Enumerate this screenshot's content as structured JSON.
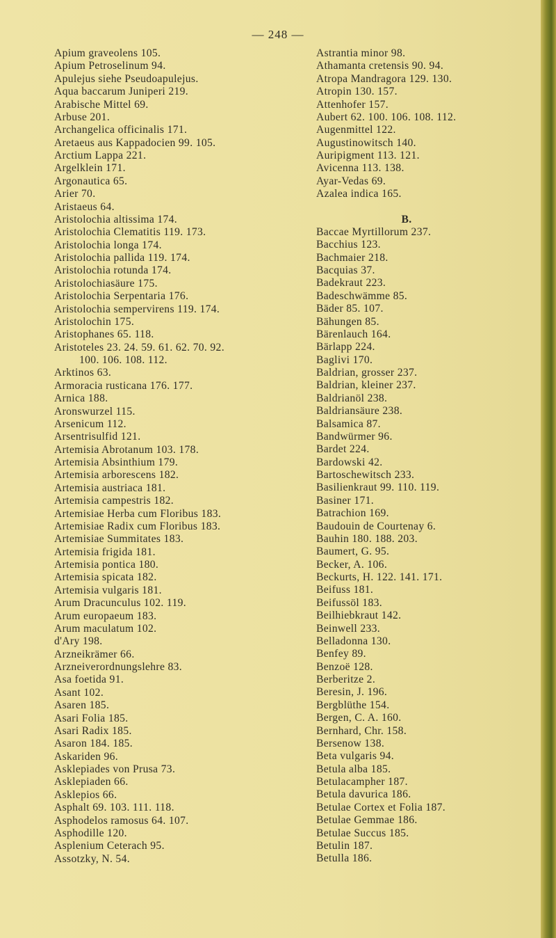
{
  "page_number": "— 248 —",
  "left_column": [
    "Apium graveolens 105.",
    "Apium Petroselinum 94.",
    "Apulejus siehe Pseudoapulejus.",
    "Aqua baccarum Juniperi 219.",
    "Arabische Mittel 69.",
    "Arbuse 201.",
    "Archangelica officinalis 171.",
    "Aretaeus aus Kappadocien 99. 105.",
    "Arctium Lappa 221.",
    "Argelklein 171.",
    "Argonautica 65.",
    "Arier 70.",
    "Aristaeus 64.",
    "Aristolochia altissima 174.",
    "Aristolochia Clematitis 119. 173.",
    "Aristolochia longa 174.",
    "Aristolochia pallida 119. 174.",
    "Aristolochia rotunda 174.",
    "Aristolochiasäure 175.",
    "Aristolochia Serpentaria 176.",
    "Aristolochia sempervirens 119. 174.",
    "Aristolochin 175.",
    "Aristophanes 65. 118.",
    "Aristoteles 23. 24. 59. 61. 62. 70. 92.",
    "100. 106. 108. 112.",
    "Arktinos 63.",
    "Armoracia rusticana 176. 177.",
    "Arnica 188.",
    "Aronswurzel 115.",
    "Arsenicum 112.",
    "Arsentrisulfid 121.",
    "Artemisia Abrotanum 103. 178.",
    "Artemisia Absinthium 179.",
    "Artemisia arborescens 182.",
    "Artemisia austriaca 181.",
    "Artemisia campestris 182.",
    "Artemisiae Herba cum Floribus 183.",
    "Artemisiae Radix cum Floribus 183.",
    "Artemisiae Summitates 183.",
    "Artemisia frigida 181.",
    "Artemisia pontica 180.",
    "Artemisia spicata 182.",
    "Artemisia vulgaris 181.",
    "Arum Dracunculus 102. 119.",
    "Arum europaeum 183.",
    "Arum maculatum 102.",
    "d'Ary 198.",
    "Arzneikrämer 66.",
    "Arzneiverordnungslehre 83.",
    "Asa foetida 91.",
    "Asant 102.",
    "Asaren 185.",
    "Asari Folia 185.",
    "Asari Radix 185.",
    "Asaron 184. 185.",
    "Askariden 96.",
    "Asklepiades von Prusa 73.",
    "Asklepiaden 66.",
    "Asklepios 66.",
    "Asphalt 69. 103. 111. 118.",
    "Asphodelos ramosus 64. 107.",
    "Asphodille 120.",
    "Asplenium Ceterach 95.",
    "Assotzky, N. 54."
  ],
  "right_column_a": [
    "Astrantia minor 98.",
    "Athamanta cretensis 90. 94.",
    "Atropa Mandragora 129. 130.",
    "Atropin 130. 157.",
    "Attenhofer 157.",
    "Aubert 62. 100. 106. 108. 112.",
    "Augenmittel 122.",
    "Augustinowitsch 140.",
    "Auripigment 113. 121.",
    "Avicenna 113. 138.",
    "Ayar-Vedas 69.",
    "Azalea indica 165."
  ],
  "section_b_heading": "B.",
  "right_column_b": [
    "Baccae Myrtillorum 237.",
    "Bacchius 123.",
    "Bachmaier 218.",
    "Bacquias 37.",
    "Badekraut 223.",
    "Badeschwämme 85.",
    "Bäder 85. 107.",
    "Bähungen 85.",
    "Bärenlauch 164.",
    "Bärlapp 224.",
    "Baglivi 170.",
    "Baldrian, grosser 237.",
    "Baldrian, kleiner 237.",
    "Baldrianöl 238.",
    "Baldriansäure 238.",
    "Balsamica 87.",
    "Bandwürmer 96.",
    "Bardet 224.",
    "Bardowski 42.",
    "Bartoschewitsch 233.",
    "Basilienkraut 99. 110. 119.",
    "Basiner 171.",
    "Batrachion 169.",
    "Baudouin de Courtenay 6.",
    "Bauhin 180. 188. 203.",
    "Baumert, G. 95.",
    "Becker, A. 106.",
    "Beckurts, H. 122. 141. 171.",
    "Beifuss 181.",
    "Beifussöl 183.",
    "Beilhiebkraut 142.",
    "Beinwell 233.",
    "Belladonna 130.",
    "Benfey 89.",
    "Benzoë 128.",
    "Berberitze 2.",
    "Beresin, J. 196.",
    "Bergblüthe 154.",
    "Bergen, C. A. 160.",
    "Bernhard, Chr. 158.",
    "Bersenow 138.",
    "Beta vulgaris 94.",
    "Betula alba 185.",
    "Betulacampher 187.",
    "Betula davurica 186.",
    "Betulae Cortex et Folia 187.",
    "Betulae Gemmae 186.",
    "Betulae Succus 185.",
    "Betulin 187.",
    "Betulla 186."
  ],
  "colors": {
    "paper": "#ece19f",
    "ink": "#2e2c26",
    "binding": "#5d6a1e"
  }
}
